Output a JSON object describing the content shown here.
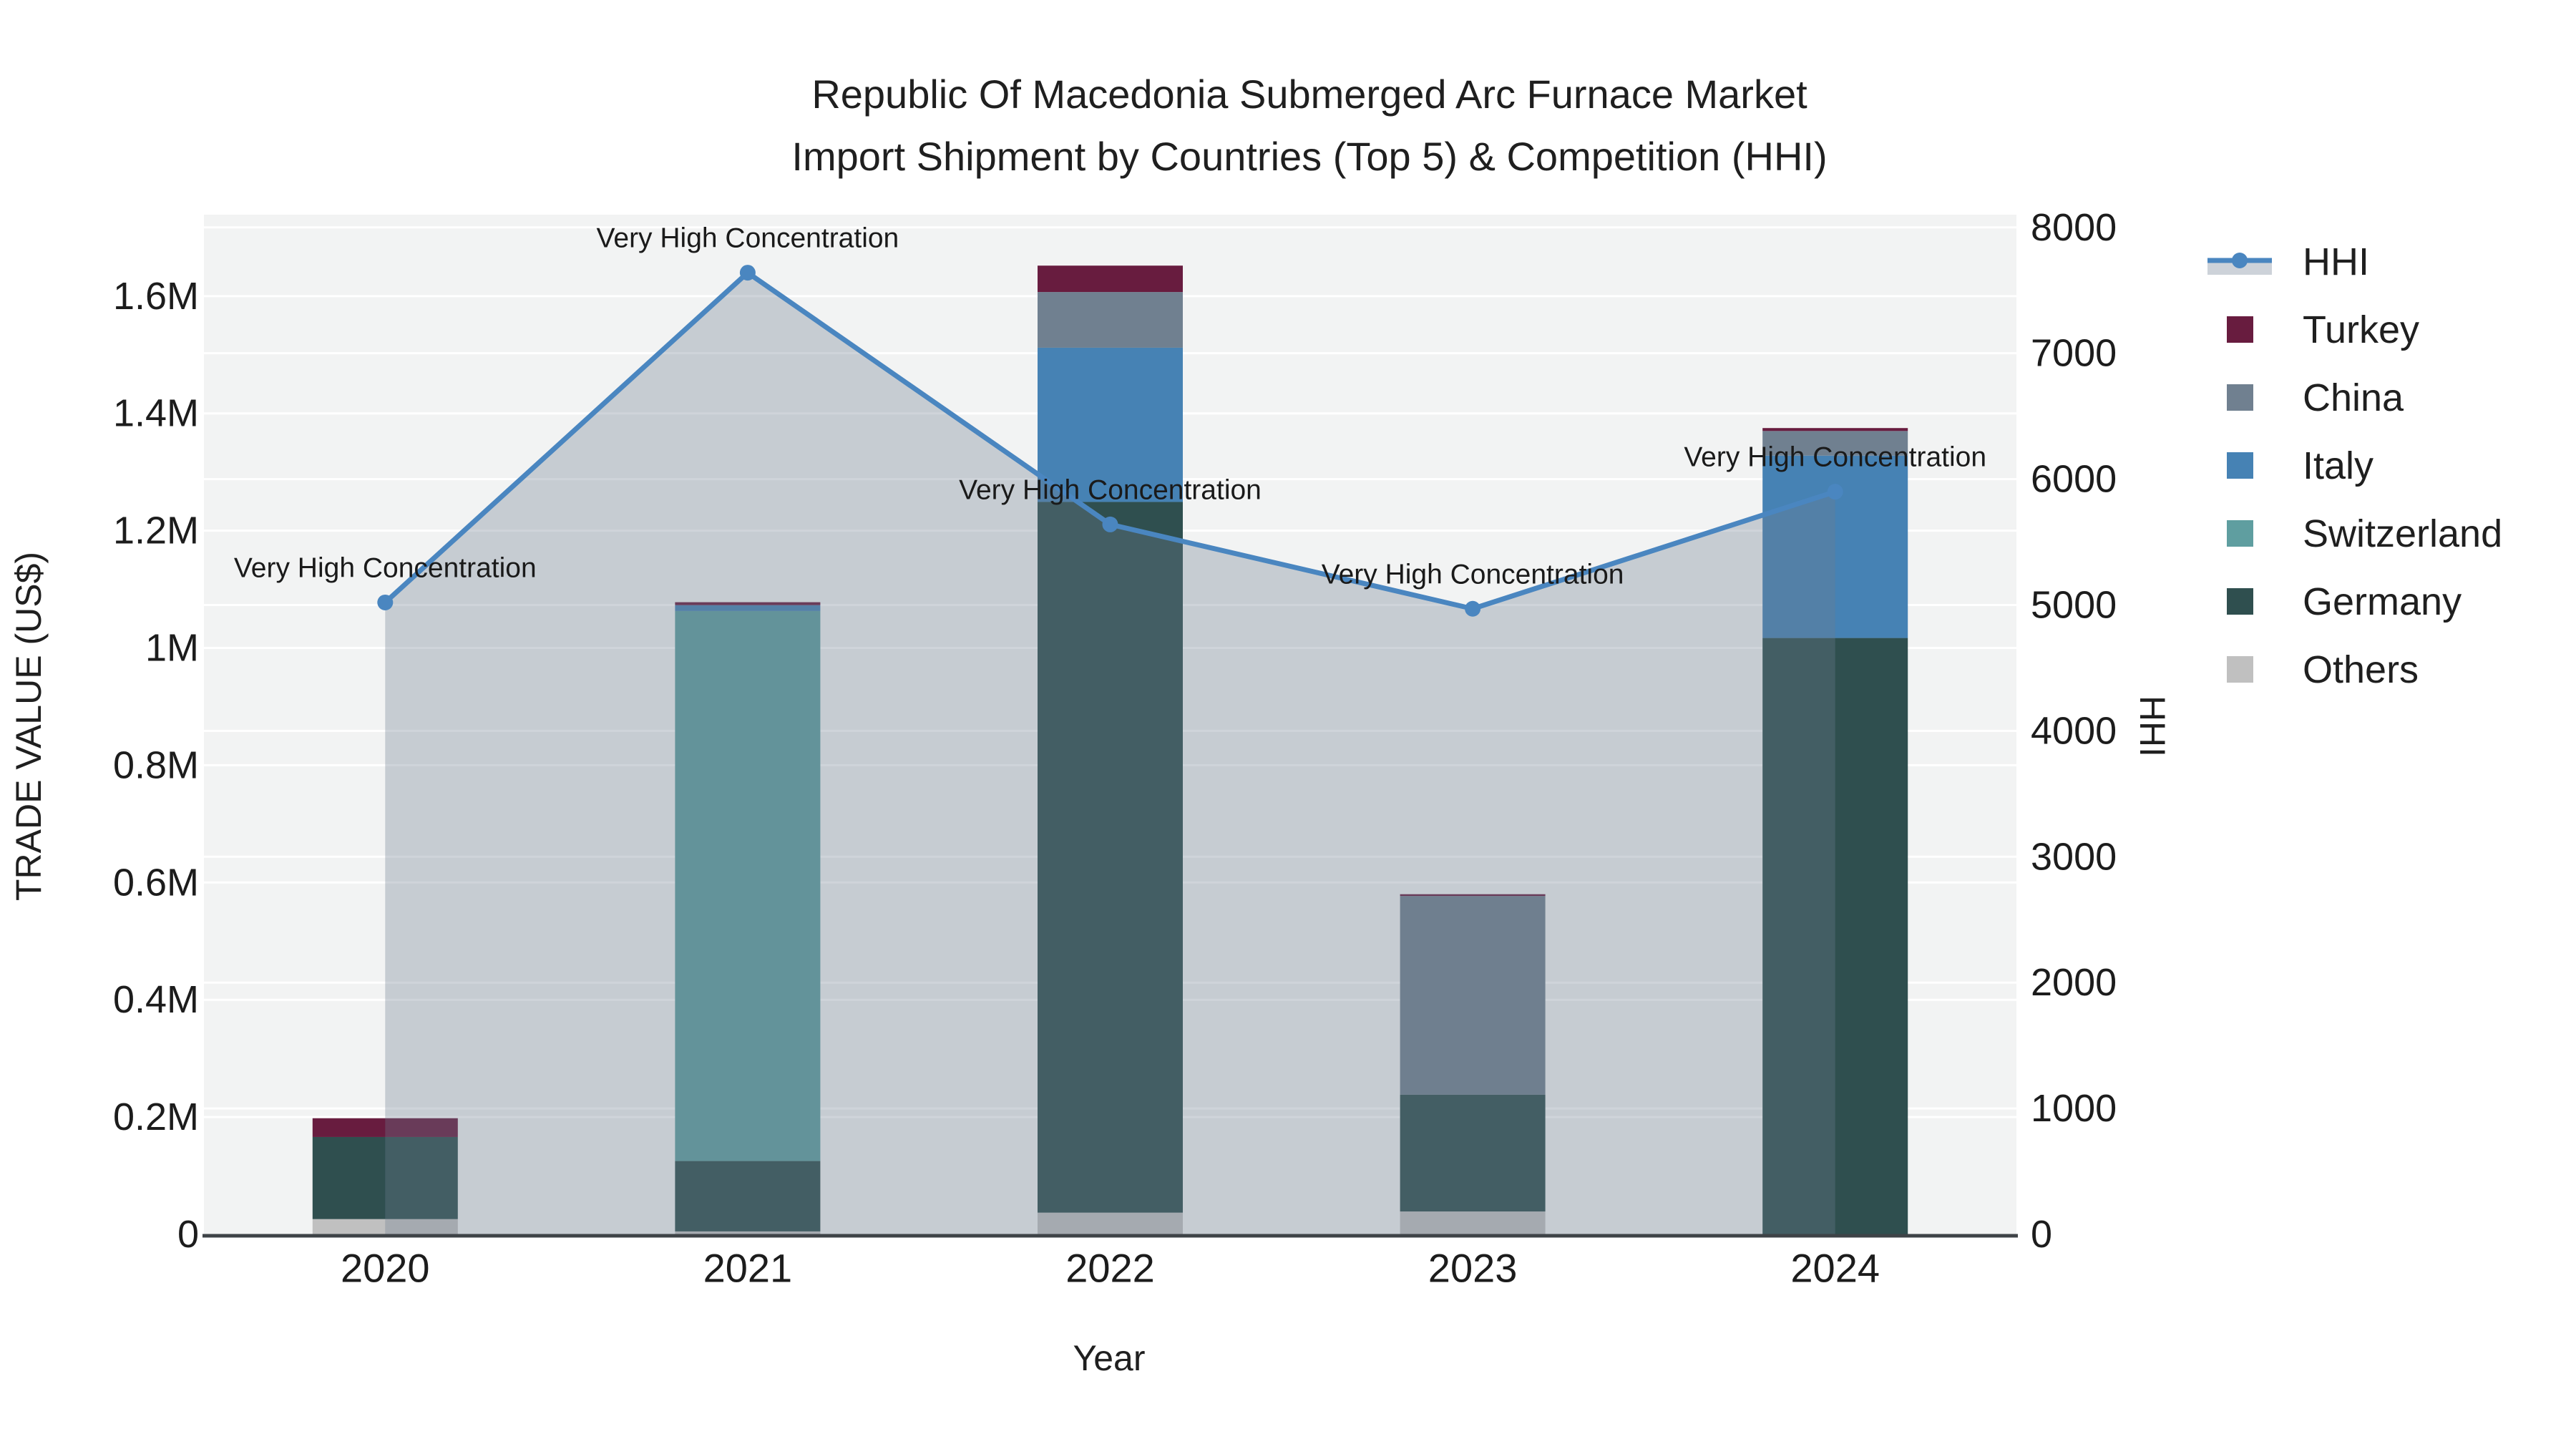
{
  "title": {
    "line1": "Republic Of Macedonia Submerged Arc Furnace Market",
    "line2": "Import Shipment by Countries (Top 5) & Competition (HHI)"
  },
  "chart_data": {
    "type": "bar",
    "subtype": "stacked-bars-with-line-area-overlay",
    "categories": [
      "2020",
      "2021",
      "2022",
      "2023",
      "2024"
    ],
    "value_unit": "US$ millions",
    "series": [
      {
        "name": "Others",
        "color": "#C0C0C0",
        "values": [
          0.026,
          0.005,
          0.037,
          0.039,
          0
        ]
      },
      {
        "name": "Germany",
        "color": "#2F4F4F",
        "values": [
          0.14,
          0.12,
          1.212,
          0.199,
          1.017
        ]
      },
      {
        "name": "Switzerland",
        "color": "#5F9EA0",
        "values": [
          0,
          0.938,
          0,
          0,
          0
        ]
      },
      {
        "name": "Italy",
        "color": "#4682B4",
        "values": [
          0,
          0.01,
          0.263,
          0,
          0.311
        ]
      },
      {
        "name": "China",
        "color": "#708090",
        "values": [
          0,
          0,
          0.095,
          0.339,
          0.042
        ]
      },
      {
        "name": "Turkey",
        "color": "#681C3F",
        "values": [
          0.032,
          0.005,
          0.045,
          0.003,
          0.005
        ]
      }
    ],
    "hhi": {
      "name": "HHI",
      "values": [
        5020,
        7640,
        5640,
        4970,
        5900
      ],
      "annotations": [
        "Very High Concentration",
        "Very High Concentration",
        "Very High Concentration",
        "Very High Concentration",
        "Very High Concentration"
      ]
    },
    "left_axis": {
      "title": "TRADE VALUE (US$)",
      "tick_labels": [
        "0",
        "0.2M",
        "0.4M",
        "0.6M",
        "0.8M",
        "1M",
        "1.2M",
        "1.4M",
        "1.6M"
      ],
      "tick_values_musd": [
        0,
        0.2,
        0.4,
        0.6,
        0.8,
        1.0,
        1.2,
        1.4,
        1.6
      ],
      "max_musd": 1.7389
    },
    "right_axis": {
      "title": "HHI",
      "tick_labels": [
        "0",
        "1000",
        "2000",
        "3000",
        "4000",
        "5000",
        "6000",
        "7000",
        "8000"
      ],
      "tick_values": [
        0,
        1000,
        2000,
        3000,
        4000,
        5000,
        6000,
        7000,
        8000
      ],
      "max": 8101
    },
    "x_axis": {
      "title": "Year"
    },
    "legend_position": "right",
    "grid": "on"
  },
  "legend": {
    "items": [
      {
        "label": "HHI",
        "type": "line",
        "color": "#4A86C0"
      },
      {
        "label": "Turkey",
        "type": "square",
        "color": "#681C3F"
      },
      {
        "label": "China",
        "type": "square",
        "color": "#708090"
      },
      {
        "label": "Italy",
        "type": "square",
        "color": "#4682B4"
      },
      {
        "label": "Switzerland",
        "type": "square",
        "color": "#5F9EA0"
      },
      {
        "label": "Germany",
        "type": "square",
        "color": "#2F4F4F"
      },
      {
        "label": "Others",
        "type": "square",
        "color": "#C0C0C0"
      }
    ]
  },
  "colors": {
    "plot_bg": "#F2F3F3",
    "grid": "#FFFFFF",
    "area_fill": "rgba(108,124,142,0.33)",
    "hhi_line": "#4A86C0",
    "axis_line": "#3E4347",
    "text": "#1C1C1C",
    "legend_band": "#CDD2D9"
  }
}
